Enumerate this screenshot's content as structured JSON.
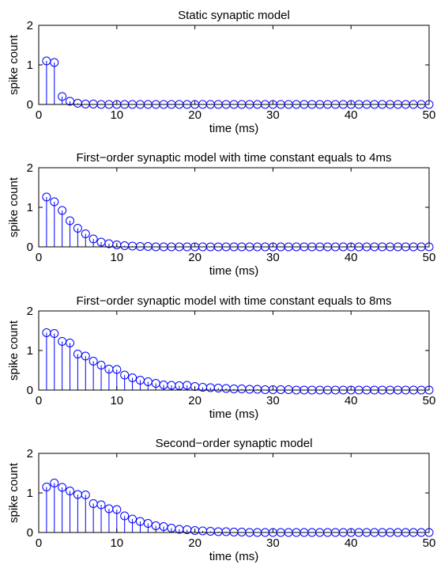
{
  "colors": {
    "stem": "#0000ff",
    "marker": "#0000ff",
    "axis": "#000000",
    "background": "#ffffff"
  },
  "chart_data": [
    {
      "type": "stem",
      "title": "Static synaptic model",
      "xlabel": "time (ms)",
      "ylabel": "spike count",
      "xlim": [
        0,
        50
      ],
      "ylim": [
        0,
        2
      ],
      "xticks": [
        "0",
        "10",
        "20",
        "30",
        "40",
        "50"
      ],
      "yticks": [
        "0",
        "1",
        "2"
      ],
      "x": [
        1,
        2,
        3,
        4,
        5,
        6,
        7,
        8,
        9,
        10,
        11,
        12,
        13,
        14,
        15,
        16,
        17,
        18,
        19,
        20,
        21,
        22,
        23,
        24,
        25,
        26,
        27,
        28,
        29,
        30,
        31,
        32,
        33,
        34,
        35,
        36,
        37,
        38,
        39,
        40,
        41,
        42,
        43,
        44,
        45,
        46,
        47,
        48,
        49,
        50
      ],
      "y": [
        1.1,
        1.06,
        0.2,
        0.08,
        0.03,
        0.01,
        0.01,
        0,
        0,
        0,
        0,
        0,
        0,
        0,
        0,
        0,
        0,
        0,
        0,
        0,
        0,
        0,
        0,
        0,
        0,
        0,
        0,
        0,
        0,
        0,
        0,
        0,
        0,
        0,
        0,
        0,
        0,
        0,
        0,
        0,
        0,
        0,
        0,
        0,
        0,
        0,
        0,
        0,
        0,
        0
      ],
      "grid": false
    },
    {
      "type": "stem",
      "title": "First−order synaptic model with time constant equals to 4ms",
      "xlabel": "time (ms)",
      "ylabel": "spike count",
      "xlim": [
        0,
        50
      ],
      "ylim": [
        0,
        2
      ],
      "xticks": [
        "0",
        "10",
        "20",
        "30",
        "40",
        "50"
      ],
      "yticks": [
        "0",
        "1",
        "2"
      ],
      "x": [
        1,
        2,
        3,
        4,
        5,
        6,
        7,
        8,
        9,
        10,
        11,
        12,
        13,
        14,
        15,
        16,
        17,
        18,
        19,
        20,
        21,
        22,
        23,
        24,
        25,
        26,
        27,
        28,
        29,
        30,
        31,
        32,
        33,
        34,
        35,
        36,
        37,
        38,
        39,
        40,
        41,
        42,
        43,
        44,
        45,
        46,
        47,
        48,
        49,
        50
      ],
      "y": [
        1.26,
        1.14,
        0.92,
        0.66,
        0.47,
        0.33,
        0.2,
        0.12,
        0.08,
        0.05,
        0.03,
        0.02,
        0.01,
        0.01,
        0,
        0,
        0,
        0,
        0,
        0,
        0,
        0,
        0,
        0,
        0,
        0,
        0,
        0,
        0,
        0,
        0,
        0,
        0,
        0,
        0,
        0,
        0,
        0,
        0,
        0,
        0,
        0,
        0,
        0,
        0,
        0,
        0,
        0,
        0,
        0
      ],
      "grid": false
    },
    {
      "type": "stem",
      "title": "First−order synaptic model with time constant equals to 8ms",
      "xlabel": "time (ms)",
      "ylabel": "spike count",
      "xlim": [
        0,
        50
      ],
      "ylim": [
        0,
        2
      ],
      "xticks": [
        "0",
        "10",
        "20",
        "30",
        "40",
        "50"
      ],
      "yticks": [
        "0",
        "1",
        "2"
      ],
      "x": [
        1,
        2,
        3,
        4,
        5,
        6,
        7,
        8,
        9,
        10,
        11,
        12,
        13,
        14,
        15,
        16,
        17,
        18,
        19,
        20,
        21,
        22,
        23,
        24,
        25,
        26,
        27,
        28,
        29,
        30,
        31,
        32,
        33,
        34,
        35,
        36,
        37,
        38,
        39,
        40,
        41,
        42,
        43,
        44,
        45,
        46,
        47,
        48,
        49,
        50
      ],
      "y": [
        1.45,
        1.43,
        1.23,
        1.19,
        0.91,
        0.86,
        0.73,
        0.63,
        0.53,
        0.52,
        0.38,
        0.31,
        0.25,
        0.21,
        0.17,
        0.13,
        0.12,
        0.11,
        0.12,
        0.09,
        0.07,
        0.06,
        0.05,
        0.04,
        0.03,
        0.03,
        0.02,
        0.02,
        0.01,
        0.01,
        0.01,
        0.01,
        0,
        0,
        0,
        0,
        0,
        0,
        0,
        0,
        0,
        0,
        0,
        0,
        0,
        0,
        0,
        0,
        0,
        0
      ],
      "grid": false
    },
    {
      "type": "stem",
      "title": "Second−order synaptic model",
      "xlabel": "time (ms)",
      "ylabel": "spike count",
      "xlim": [
        0,
        50
      ],
      "ylim": [
        0,
        2
      ],
      "xticks": [
        "0",
        "10",
        "20",
        "30",
        "40",
        "50"
      ],
      "yticks": [
        "0",
        "1",
        "2"
      ],
      "x": [
        1,
        2,
        3,
        4,
        5,
        6,
        7,
        8,
        9,
        10,
        11,
        12,
        13,
        14,
        15,
        16,
        17,
        18,
        19,
        20,
        21,
        22,
        23,
        24,
        25,
        26,
        27,
        28,
        29,
        30,
        31,
        32,
        33,
        34,
        35,
        36,
        37,
        38,
        39,
        40,
        41,
        42,
        43,
        44,
        45,
        46,
        47,
        48,
        49,
        50
      ],
      "y": [
        1.15,
        1.25,
        1.14,
        1.05,
        0.96,
        0.95,
        0.73,
        0.7,
        0.6,
        0.58,
        0.42,
        0.34,
        0.28,
        0.23,
        0.17,
        0.15,
        0.11,
        0.08,
        0.07,
        0.05,
        0.04,
        0.03,
        0.02,
        0.02,
        0.01,
        0.01,
        0,
        0,
        0,
        0,
        0,
        0,
        0,
        0,
        0,
        0,
        0,
        0,
        0,
        0,
        0,
        0,
        0,
        0,
        0,
        0,
        0,
        0,
        0,
        0
      ],
      "grid": false
    }
  ]
}
